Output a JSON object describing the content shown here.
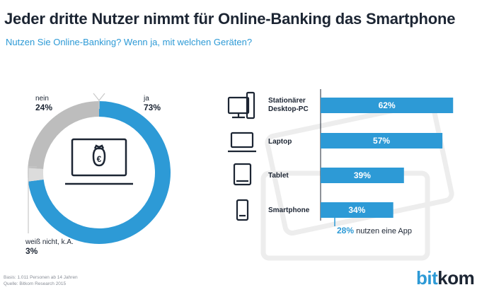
{
  "title": "Jeder dritte Nutzer nimmt für Online-Banking das Smartphone",
  "subtitle": "Nutzen Sie Online-Banking? Wenn ja, mit welchen Geräten?",
  "colors": {
    "accent": "#2d9ad6",
    "grey": "#bdbdbd",
    "light": "#dcdcdc",
    "dark": "#1c2533"
  },
  "chart_data": [
    {
      "type": "pie",
      "title": "",
      "slices": [
        {
          "name": "ja",
          "value": 73,
          "label": "73%"
        },
        {
          "name": "weiß nicht, k.A.",
          "value": 3,
          "label": "3%"
        },
        {
          "name": "nein",
          "value": 24,
          "label": "24%"
        }
      ]
    },
    {
      "type": "bar",
      "title": "",
      "categories": [
        "Stationärer Desktop-PC",
        "Laptop",
        "Tablet",
        "Smartphone"
      ],
      "category_labels": [
        "Stationärer\nDesktop-PC",
        "Laptop",
        "Tablet",
        "Smartphone"
      ],
      "values": [
        62,
        57,
        39,
        34
      ],
      "value_labels": [
        "62%",
        "57%",
        "39%",
        "34%"
      ],
      "icons": [
        "desktop-pc-icon",
        "laptop-icon",
        "tablet-icon",
        "smartphone-icon"
      ],
      "xlim": [
        0,
        100
      ],
      "annotation": {
        "pct": "28%",
        "text": "nutzen eine App"
      }
    }
  ],
  "source": {
    "line1": "Basis: 1.011 Personen ab 14 Jahren",
    "line2": "Quelle: Bitkom Research 2015"
  },
  "logo": {
    "part1": "bit",
    "part2": "kom"
  }
}
